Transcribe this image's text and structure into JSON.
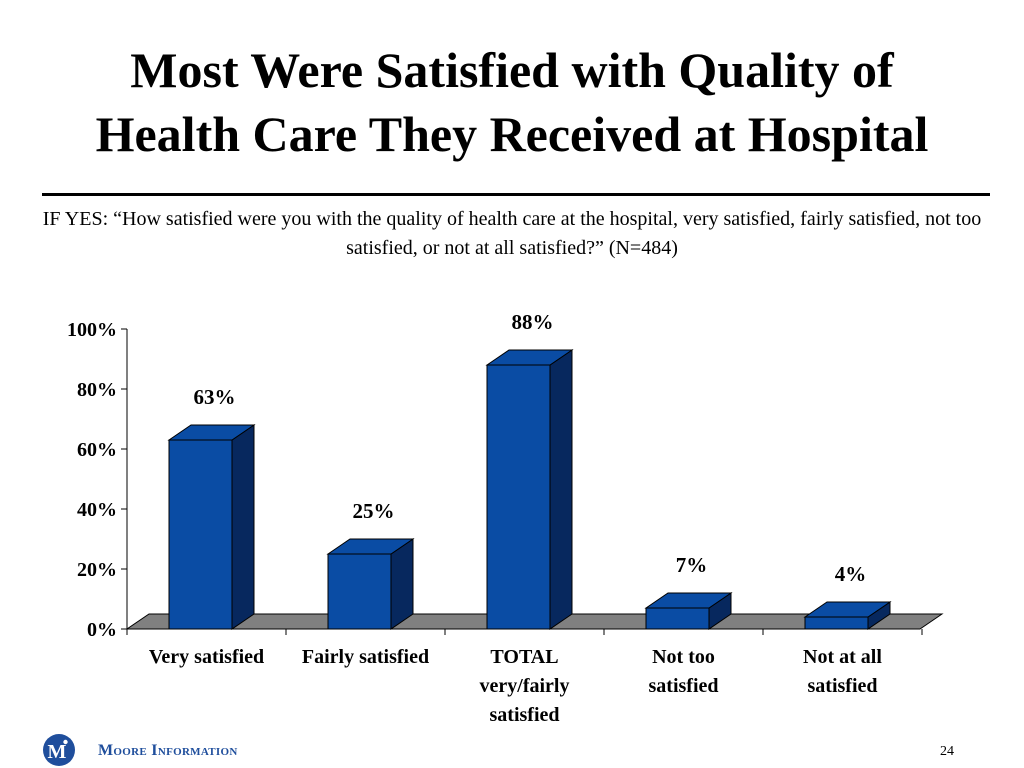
{
  "slide": {
    "title_line1": "Most Were Satisfied with Quality of",
    "title_line2": "Health Care They Received at Hospital",
    "question": "IF YES: “How satisfied were you with the quality of health care at the hospital, very satisfied, fairly satisfied, not too satisfied, or not at all satisfied?” (N=484)"
  },
  "chart_data": {
    "type": "bar",
    "title": "",
    "xlabel": "",
    "ylabel": "",
    "ylim": [
      0,
      100
    ],
    "yticks": [
      0,
      20,
      40,
      60,
      80,
      100
    ],
    "ytick_labels": [
      "0%",
      "20%",
      "40%",
      "60%",
      "80%",
      "100%"
    ],
    "categories": [
      [
        "Very satisfied"
      ],
      [
        "Fairly satisfied"
      ],
      [
        "TOTAL",
        "very/fairly",
        "satisfied"
      ],
      [
        "Not too",
        "satisfied"
      ],
      [
        "Not at all",
        "satisfied"
      ]
    ],
    "values": [
      63,
      25,
      88,
      7,
      4
    ],
    "data_labels": [
      "63%",
      "25%",
      "88%",
      "7%",
      "4%"
    ],
    "grid": false,
    "legend": "none",
    "bar_color": "#0a4ca4",
    "bar_side_color": "#07285e",
    "floor_color": "#808080"
  },
  "footer": {
    "logo_letter": "M",
    "brand": "Moore Information",
    "page_number": "24",
    "brand_color": "#1f4e9c"
  }
}
